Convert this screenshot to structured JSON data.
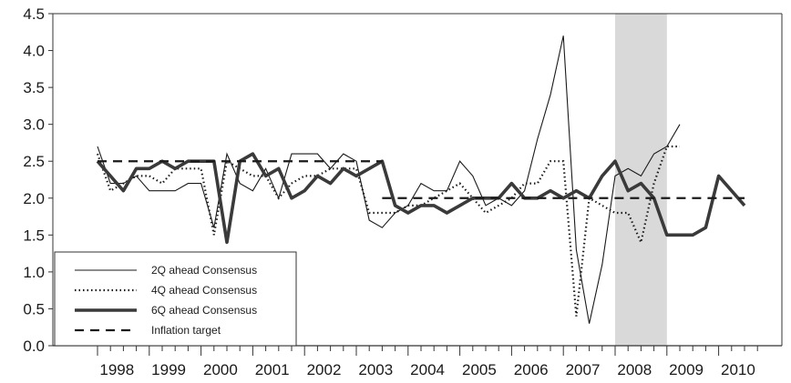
{
  "chart_data": {
    "type": "line",
    "title": "",
    "xlabel": "",
    "ylabel": "",
    "ylim": [
      0,
      4.5
    ],
    "yticks": [
      "0.0",
      "0.5",
      "1.0",
      "1.5",
      "2.0",
      "2.5",
      "3.0",
      "3.5",
      "4.0",
      "4.5"
    ],
    "year_labels": [
      "1998",
      "1999",
      "2000",
      "2001",
      "2002",
      "2003",
      "2004",
      "2005",
      "2006",
      "2007",
      "2008",
      "2009",
      "2010"
    ],
    "grid": false,
    "legend_position": "bottom-left",
    "shaded_region": {
      "from_index": 40,
      "to_index": 44,
      "color": "#d9d9d9"
    },
    "series": [
      {
        "name": "2Q ahead Consensus",
        "style": "thin-solid",
        "values": [
          2.7,
          2.2,
          2.2,
          2.3,
          2.1,
          2.1,
          2.1,
          2.2,
          2.2,
          1.6,
          2.6,
          2.2,
          2.1,
          2.4,
          2.0,
          2.6,
          2.6,
          2.6,
          2.4,
          2.6,
          2.5,
          1.7,
          1.6,
          1.8,
          1.9,
          2.2,
          2.1,
          2.1,
          2.5,
          2.3,
          1.9,
          2.0,
          1.9,
          2.1,
          2.8,
          3.4,
          4.2,
          1.3,
          0.3,
          1.1,
          2.3,
          2.4,
          2.3,
          2.6,
          2.7,
          3.0
        ]
      },
      {
        "name": "4Q ahead Consensus",
        "style": "dotted",
        "values": [
          2.6,
          2.1,
          2.2,
          2.3,
          2.3,
          2.2,
          2.4,
          2.4,
          2.4,
          1.5,
          2.5,
          2.4,
          2.3,
          2.3,
          2.0,
          2.2,
          2.3,
          2.3,
          2.4,
          2.4,
          2.4,
          1.8,
          1.8,
          1.8,
          1.9,
          1.9,
          2.0,
          2.1,
          2.2,
          2.0,
          1.8,
          1.9,
          2.0,
          2.2,
          2.2,
          2.5,
          2.5,
          0.4,
          2.0,
          1.9,
          1.8,
          1.8,
          1.4,
          2.2,
          2.7,
          2.7
        ]
      },
      {
        "name": "6Q ahead Consensus",
        "style": "thick-solid",
        "values": [
          2.5,
          2.3,
          2.1,
          2.4,
          2.4,
          2.5,
          2.4,
          2.5,
          2.5,
          2.5,
          1.4,
          2.5,
          2.6,
          2.3,
          2.4,
          2.0,
          2.1,
          2.3,
          2.2,
          2.4,
          2.3,
          2.4,
          2.5,
          1.9,
          1.8,
          1.9,
          1.9,
          1.8,
          1.9,
          2.0,
          2.0,
          2.0,
          2.2,
          2.0,
          2.0,
          2.1,
          2.0,
          2.1,
          2.0,
          2.3,
          2.5,
          2.1,
          2.2,
          2.0,
          1.5,
          1.5,
          1.5,
          1.6,
          2.3,
          2.1,
          1.9
        ]
      },
      {
        "name": "Inflation target",
        "style": "dashed",
        "segments": [
          {
            "from_index": 0,
            "to_index": 22,
            "value": 2.5
          },
          {
            "from_index": 22,
            "to_index": 50,
            "value": 2.0
          }
        ]
      }
    ]
  }
}
